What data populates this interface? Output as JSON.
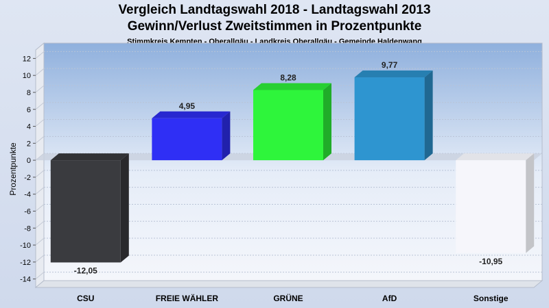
{
  "chart_data": {
    "type": "bar",
    "title": "Vergleich Landtagswahl 2018 - Landtagswahl 2013",
    "subtitle": "Gewinn/Verlust Zweitstimmen in Prozentpunkte",
    "subtitle2": "Stimmkreis Kempten - Oberallgäu - Landkreis Oberallgäu - Gemeinde Haldenwang",
    "ylabel": "Prozentpunkte",
    "xlabel": "",
    "ylim": [
      -15,
      13
    ],
    "yticks": [
      12,
      10,
      8,
      6,
      4,
      2,
      0,
      -2,
      -4,
      -6,
      -8,
      -10,
      -12,
      -14
    ],
    "categories": [
      "CSU",
      "FREIE WÄHLER",
      "GRÜNE",
      "AfD",
      "Sonstige"
    ],
    "values": [
      -12.05,
      4.95,
      8.28,
      9.77,
      -10.95
    ],
    "value_labels": [
      "-12,05",
      "4,95",
      "8,28",
      "9,77",
      "-10,95"
    ],
    "colors": [
      "#3a3b3f",
      "#2f2ff5",
      "#2ef53b",
      "#2e95d0",
      "#f6f6fb"
    ],
    "grid": true,
    "legend": "none"
  }
}
